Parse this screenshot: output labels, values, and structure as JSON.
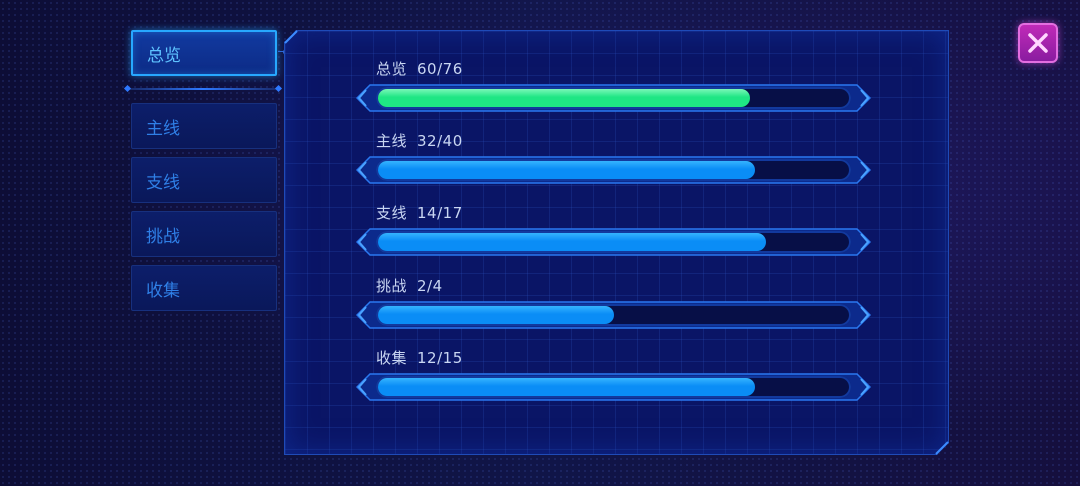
{
  "tabs": [
    {
      "label": "总览",
      "active": true
    },
    {
      "label": "主线",
      "active": false
    },
    {
      "label": "支线",
      "active": false
    },
    {
      "label": "挑战",
      "active": false
    },
    {
      "label": "收集",
      "active": false
    }
  ],
  "progress": [
    {
      "label": "总览",
      "count": "60/76",
      "value": 60,
      "total": 76,
      "color": "#1fe684",
      "highlight": "#7af7b8"
    },
    {
      "label": "主线",
      "count": "32/40",
      "value": 32,
      "total": 40,
      "color": "#0a8df6",
      "highlight": "#35b4ff"
    },
    {
      "label": "支线",
      "count": "14/17",
      "value": 14,
      "total": 17,
      "color": "#0a8df6",
      "highlight": "#35b4ff"
    },
    {
      "label": "挑战",
      "count": "2/4",
      "value": 2,
      "total": 4,
      "color": "#0a8df6",
      "highlight": "#35b4ff"
    },
    {
      "label": "收集",
      "count": "12/15",
      "value": 12,
      "total": 15,
      "color": "#0a8df6",
      "highlight": "#35b4ff"
    }
  ],
  "close": {
    "icon": "close-x-icon",
    "color": "#c02ab8"
  }
}
